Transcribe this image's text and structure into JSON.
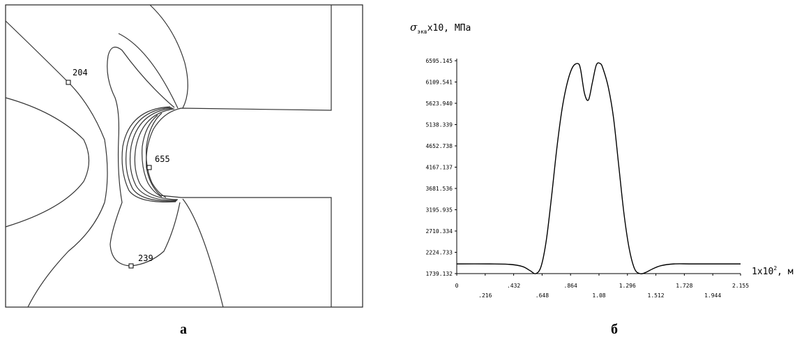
{
  "panel_a": {
    "contour_labels": [
      "204",
      "655",
      "239"
    ],
    "caption": "а"
  },
  "panel_b": {
    "caption": "б",
    "y_label": {
      "symbol": "σ",
      "subscript": "экв",
      "rest": "x10, МПа"
    },
    "x_label": {
      "base": "1x10",
      "sup": "2",
      "rest": ", м"
    }
  },
  "chart_data": {
    "type": "line",
    "ylabel": "σэкв x10, МПа",
    "xlabel": "1x10², м",
    "xlim": [
      0,
      2.155
    ],
    "ylim": [
      1739.132,
      6595.145
    ],
    "y_ticks": [
      "6595.145",
      "6109.541",
      "5623.940",
      "5138.339",
      "4652.738",
      "4167.137",
      "3681.536",
      "3195.935",
      "2710.334",
      "2224.733",
      "1739.132"
    ],
    "x_ticks_top": [
      "0",
      ".432",
      ".864",
      "1.296",
      "1.728",
      "2.155"
    ],
    "x_ticks_bottom": [
      ".216",
      ".648",
      "1.08",
      "1.512",
      "1.944"
    ],
    "series": [
      {
        "x": [
          0,
          0.25,
          0.4,
          0.5,
          0.56,
          0.6,
          0.64,
          0.68,
          0.72,
          0.76,
          0.8,
          0.84,
          0.88,
          0.92,
          0.94,
          0.97,
          1.0,
          1.03,
          1.06,
          1.09,
          1.11,
          1.15,
          1.19,
          1.23,
          1.27,
          1.31,
          1.35,
          1.39,
          1.43,
          1.49,
          1.55,
          1.65,
          1.8,
          2.155
        ],
        "y": [
          1960,
          1960,
          1950,
          1900,
          1800,
          1739,
          1900,
          2500,
          3500,
          4600,
          5500,
          6100,
          6450,
          6530,
          6400,
          5850,
          5700,
          6100,
          6500,
          6530,
          6420,
          6000,
          5300,
          4200,
          3100,
          2300,
          1850,
          1739,
          1760,
          1850,
          1920,
          1960,
          1960,
          1960
        ]
      }
    ]
  }
}
